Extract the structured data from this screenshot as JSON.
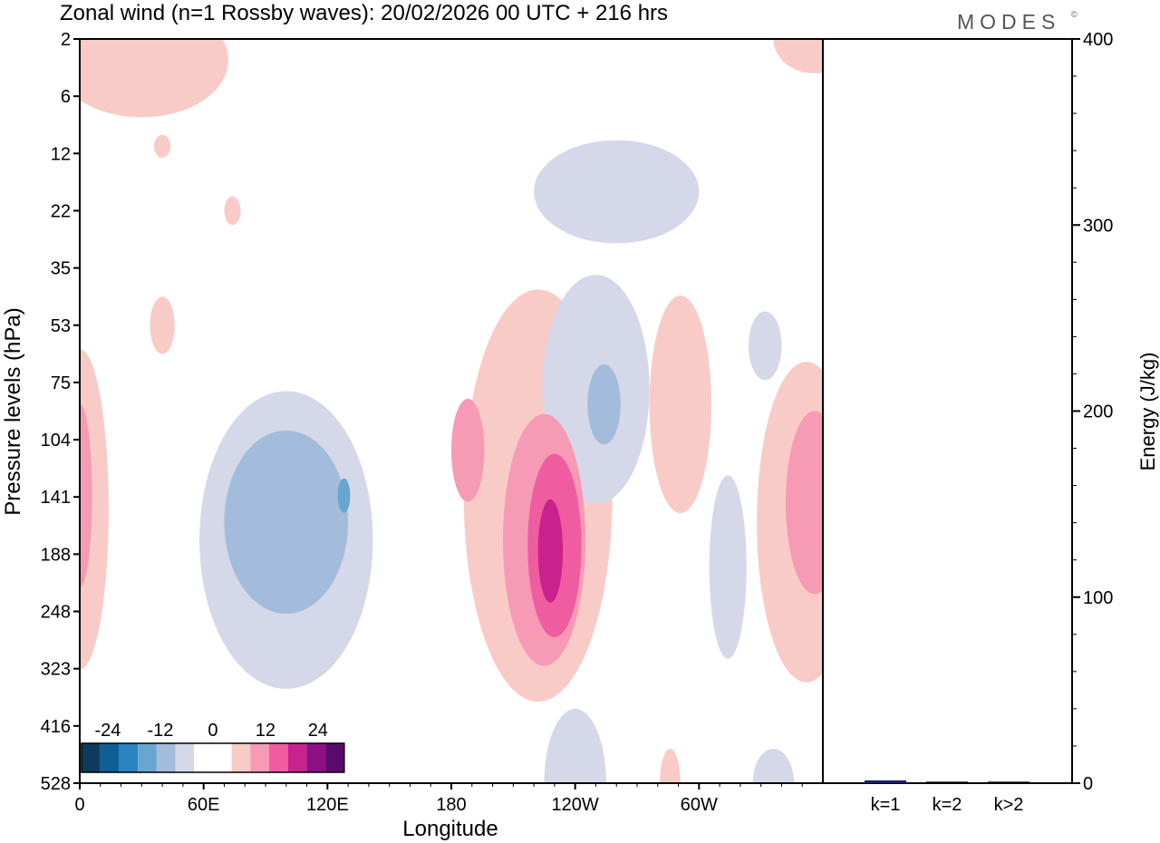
{
  "title": "Zonal wind (n=1 Rossby waves):  20/02/2026  00 UTC  + 216 hrs",
  "brand": "MODES",
  "brand_mark": "©",
  "chart_data": [
    {
      "type": "heatmap",
      "title": "Zonal wind (n=1 Rossby waves):  20/02/2026  00 UTC  + 216 hrs",
      "xlabel": "Longitude",
      "ylabel": "Pressure levels (hPa)",
      "x_ticks": [
        {
          "lon": 0,
          "label": "0"
        },
        {
          "lon": 60,
          "label": "60E"
        },
        {
          "lon": 120,
          "label": "120E"
        },
        {
          "lon": 180,
          "label": "180"
        },
        {
          "lon": 240,
          "label": "120W"
        },
        {
          "lon": 300,
          "label": "60W"
        }
      ],
      "xlim": [
        0,
        360
      ],
      "y_levels": [
        2,
        6,
        12,
        22,
        35,
        53,
        75,
        104,
        141,
        188,
        248,
        323,
        416,
        528
      ],
      "colorbar": {
        "labels": [
          "-24",
          "-12",
          "0",
          "12",
          "24"
        ],
        "label_values": [
          -24,
          -12,
          0,
          12,
          24
        ],
        "colors": [
          "#0d3b5e",
          "#0f5f96",
          "#2a85c0",
          "#68a5d0",
          "#a3bcdb",
          "#d4d8e8",
          "#ffffff",
          "#ffffff",
          "#f9cbc7",
          "#f79ab5",
          "#ef5c9f",
          "#c9218d",
          "#8e1085",
          "#5a0a6c"
        ]
      },
      "contours": [
        {
          "name": "west-top-neg",
          "level": -3,
          "lon": 260,
          "p": 18,
          "rlon": 40,
          "rlev": 0.9
        },
        {
          "name": "pacific-neg-outer",
          "level": -3,
          "lon": 100,
          "p": 175,
          "rlon": 42,
          "rlev": 2.6
        },
        {
          "name": "pacific-neg-inner",
          "level": -6,
          "lon": 100,
          "p": 160,
          "rlon": 30,
          "rlev": 1.6
        },
        {
          "name": "pacific-neg-core",
          "level": -9,
          "lon": 128,
          "p": 140,
          "rlon": 3,
          "rlev": 0.3
        },
        {
          "name": "central-pos-outer",
          "level": 3,
          "lon": 222,
          "p": 140,
          "rlon": 36,
          "rlev": 3.6
        },
        {
          "name": "central-pos-upper",
          "level": 6,
          "lon": 188,
          "p": 110,
          "rlon": 8,
          "rlev": 0.9
        },
        {
          "name": "central-pos-mid",
          "level": 6,
          "lon": 225,
          "p": 175,
          "rlon": 20,
          "rlev": 2.2
        },
        {
          "name": "central-pos-inner",
          "level": 9,
          "lon": 230,
          "p": 180,
          "rlon": 13,
          "rlev": 1.6
        },
        {
          "name": "central-pos-core",
          "level": 12,
          "lon": 228,
          "p": 185,
          "rlon": 6,
          "rlev": 0.9
        },
        {
          "name": "eastpac-neg-outer",
          "level": -3,
          "lon": 250,
          "p": 78,
          "rlon": 26,
          "rlev": 2.0
        },
        {
          "name": "eastpac-neg-inner",
          "level": -6,
          "lon": 254,
          "p": 85,
          "rlon": 8,
          "rlev": 0.7
        },
        {
          "name": "america-pos",
          "level": 3,
          "lon": 291,
          "p": 85,
          "rlon": 15,
          "rlev": 1.9
        },
        {
          "name": "atlantic-neg",
          "level": -3,
          "lon": 332,
          "p": 60,
          "rlon": 8,
          "rlev": 0.6
        },
        {
          "name": "lower-neg",
          "level": -3,
          "lon": 314,
          "p": 200,
          "rlon": 9,
          "rlev": 1.6
        },
        {
          "name": "east-edge-pos-outer",
          "level": 3,
          "lon": 352,
          "p": 160,
          "rlon": 24,
          "rlev": 2.8
        },
        {
          "name": "east-edge-pos-inner",
          "level": 6,
          "lon": 356,
          "p": 145,
          "rlon": 14,
          "rlev": 1.6
        },
        {
          "name": "west-edge-pos-outer",
          "level": 3,
          "lon": 0,
          "p": 150,
          "rlon": 14,
          "rlev": 2.8
        },
        {
          "name": "west-edge-pos-inner",
          "level": 6,
          "lon": 0,
          "p": 140,
          "rlon": 6,
          "rlev": 1.6
        },
        {
          "name": "top-left-pos",
          "level": 3,
          "lon": 30,
          "p": 3,
          "rlon": 42,
          "rlev": 1.0
        },
        {
          "name": "strat-pos-1",
          "level": 3,
          "lon": 40,
          "p": 11,
          "rlon": 4,
          "rlev": 0.2
        },
        {
          "name": "strat-pos-2",
          "level": 3,
          "lon": 74,
          "p": 22,
          "rlon": 4,
          "rlev": 0.25
        },
        {
          "name": "strat-pos-3",
          "level": 3,
          "lon": 40,
          "p": 53,
          "rlon": 6,
          "rlev": 0.5
        },
        {
          "name": "bottom-neg-1",
          "level": -3,
          "lon": 240,
          "p": 528,
          "rlon": 15,
          "rlev": 1.3
        },
        {
          "name": "bottom-pos-1",
          "level": 3,
          "lon": 286,
          "p": 528,
          "rlon": 5,
          "rlev": 0.6
        },
        {
          "name": "bottom-neg-2",
          "level": -3,
          "lon": 336,
          "p": 528,
          "rlon": 10,
          "rlev": 0.6
        },
        {
          "name": "top-right-pos",
          "level": 3,
          "lon": 356,
          "p": 2,
          "rlon": 20,
          "rlev": 0.6
        }
      ]
    },
    {
      "type": "bar",
      "categories": [
        "k=1",
        "k=2",
        "k>2"
      ],
      "values": [
        1.5,
        0.8,
        0.8
      ],
      "colors": [
        "#1a1a6e",
        "#000000",
        "#000000"
      ],
      "ylabel": "Energy (J/kg)",
      "ylim": [
        0,
        400
      ],
      "y_ticks": [
        0,
        100,
        200,
        300,
        400
      ]
    }
  ]
}
